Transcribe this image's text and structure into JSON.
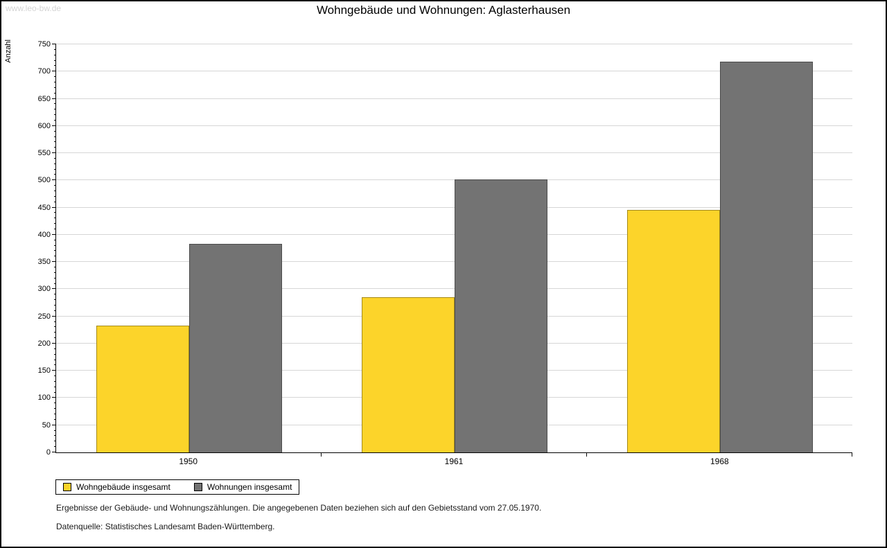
{
  "watermark": "www.leo-bw.de",
  "title": "Wohngebäude und Wohnungen: Aglasterhausen",
  "chart_data": {
    "type": "bar",
    "categories": [
      "1950",
      "1961",
      "1968"
    ],
    "series": [
      {
        "name": "Wohngebäude insgesamt",
        "color": "#FCD42A",
        "values": [
          233,
          285,
          446
        ]
      },
      {
        "name": "Wohnungen insgesamt",
        "color": "#737373",
        "values": [
          383,
          502,
          718
        ]
      }
    ],
    "title": "Wohngebäude und Wohnungen: Aglasterhausen",
    "xlabel": "",
    "ylabel": "Anzahl",
    "ylim": [
      0,
      750
    ],
    "ytick_step": 50,
    "ytick_minor_step": 10,
    "grid": true,
    "gridline_color": "#d6d6d6",
    "legend_position": "bottom-left"
  },
  "footnotes": [
    "Ergebnisse der Gebäude- und Wohnungszählungen. Die angegebenen Daten beziehen sich auf den Gebietsstand vom 27.05.1970.",
    "Datenquelle: Statistisches Landesamt Baden-Württemberg."
  ]
}
